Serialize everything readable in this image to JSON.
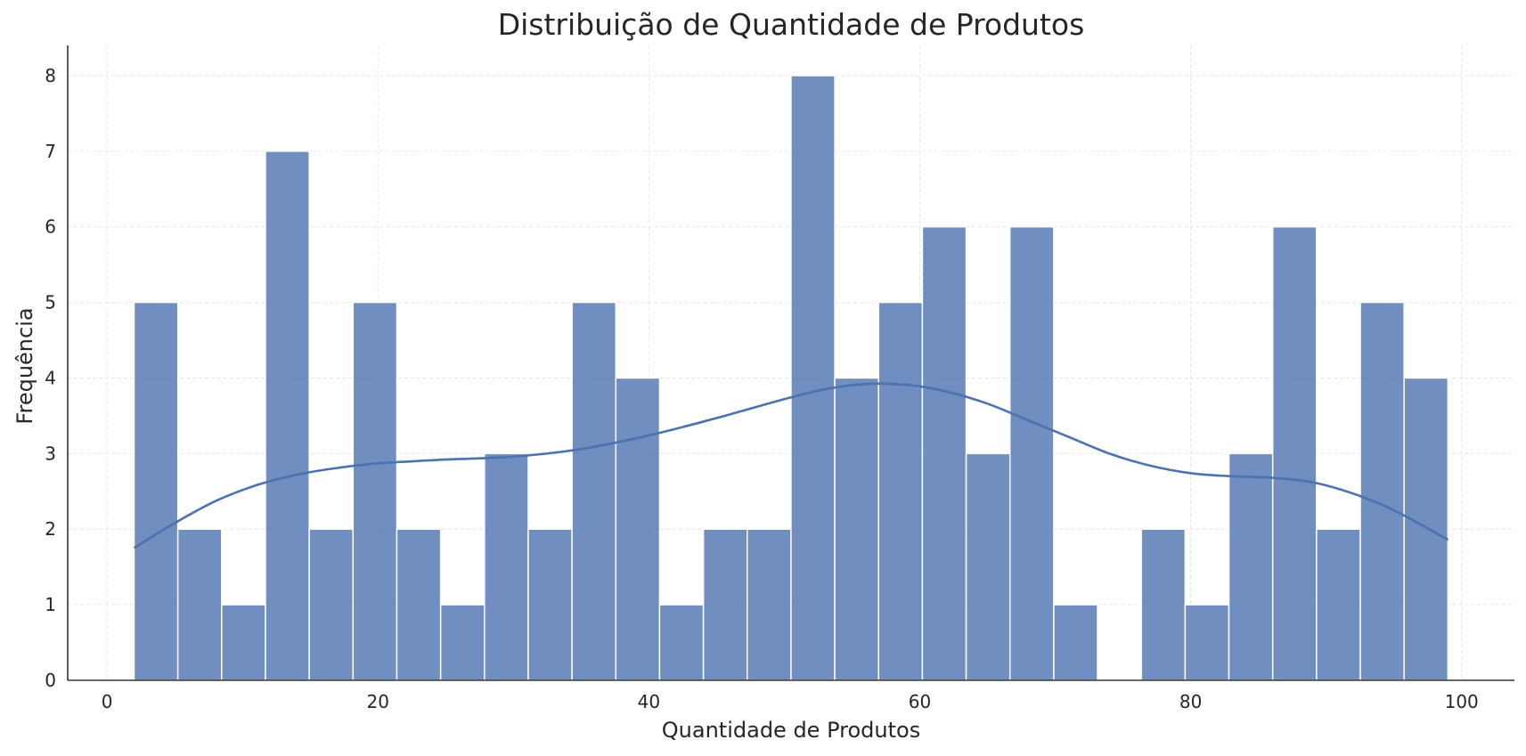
{
  "chart_data": {
    "type": "bar",
    "subtype": "histogram_with_kde",
    "title": "Distribuição de Quantidade de Produtos",
    "xlabel": "Quantidade de Produtos",
    "ylabel": "Frequência",
    "xlim": [
      -2.9,
      103.9
    ],
    "ylim": [
      0,
      8.4
    ],
    "xticks": [
      0,
      20,
      40,
      60,
      80,
      100
    ],
    "yticks": [
      0,
      1,
      2,
      3,
      4,
      5,
      6,
      7,
      8
    ],
    "grid": true,
    "bin_start": 2,
    "bin_width": 3.233,
    "values": [
      5,
      2,
      1,
      7,
      2,
      5,
      2,
      1,
      3,
      2,
      5,
      4,
      1,
      2,
      2,
      8,
      4,
      5,
      6,
      3,
      6,
      1,
      0,
      2,
      1,
      3,
      6,
      2,
      5,
      4
    ],
    "kde": {
      "x": [
        2,
        5,
        8,
        11,
        14,
        17,
        20,
        25,
        30,
        35,
        40,
        45,
        50,
        53,
        56,
        59,
        62,
        65,
        68,
        71,
        74,
        77,
        80,
        83,
        86,
        89,
        92,
        95,
        99
      ],
      "y": [
        1.75,
        2.08,
        2.37,
        2.58,
        2.72,
        2.81,
        2.87,
        2.92,
        2.96,
        3.06,
        3.24,
        3.47,
        3.72,
        3.85,
        3.92,
        3.91,
        3.82,
        3.66,
        3.44,
        3.22,
        3.0,
        2.84,
        2.74,
        2.7,
        2.68,
        2.62,
        2.47,
        2.25,
        1.86
      ]
    },
    "colors": {
      "bar": "#4c72b0",
      "kde": "#4c72b0",
      "grid": "#e6e6e6"
    }
  }
}
